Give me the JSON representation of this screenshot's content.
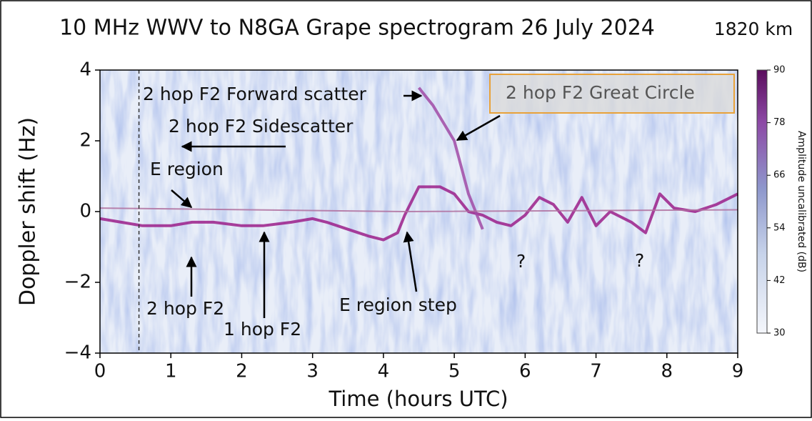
{
  "chart_data": {
    "type": "spectrogram",
    "title": "10 MHz WWV to N8GA Grape spectrogram 26 July 2024",
    "subtitle": "1820 km",
    "x_label": "Time (hours UTC)",
    "y_label": "Doppler shift (Hz)",
    "xlim": [
      0,
      9
    ],
    "xticks": [
      0,
      1,
      2,
      3,
      4,
      5,
      6,
      7,
      8,
      9
    ],
    "ylim": [
      -4,
      4
    ],
    "yticks": [
      4,
      2,
      0,
      {
        "value": -2,
        "label": "−2"
      },
      {
        "value": -4,
        "label": "−4"
      }
    ],
    "vline_x": 0.55,
    "clim": [
      30,
      90
    ],
    "cticks": [
      30,
      42,
      54,
      66,
      78,
      90
    ],
    "colorbar_label": "Amplitude uncalibrated (dB)",
    "traces": [
      {
        "color": "#9b1f8a",
        "x": [
          0,
          0.3,
          0.6,
          1,
          1.3,
          1.6,
          2,
          2.3,
          2.7,
          3,
          3.2,
          3.5,
          3.8,
          4,
          4.2,
          4.3,
          4.5,
          4.8,
          5,
          5.2,
          5.4,
          5.6,
          5.8,
          6,
          6.2,
          6.4,
          6.6,
          6.8,
          7,
          7.2,
          7.5,
          7.7,
          7.9,
          8.1,
          8.4,
          8.7,
          9
        ],
        "values": [
          -0.2,
          -0.3,
          -0.4,
          -0.4,
          -0.3,
          -0.3,
          -0.4,
          -0.4,
          -0.3,
          -0.2,
          -0.3,
          -0.5,
          -0.7,
          -0.8,
          -0.6,
          -0.1,
          0.7,
          0.7,
          0.5,
          0.0,
          -0.1,
          -0.3,
          -0.4,
          -0.1,
          0.4,
          0.2,
          -0.3,
          0.4,
          -0.4,
          0.0,
          -0.3,
          -0.6,
          0.5,
          0.1,
          0.0,
          0.2,
          0.5
        ]
      },
      {
        "color": "#a04aa6",
        "x": [
          4.5,
          4.7,
          5,
          5.2,
          5.4
        ],
        "values": [
          3.5,
          3.0,
          2.0,
          0.5,
          -0.5
        ]
      },
      {
        "color": "#b0709f",
        "x": [
          0,
          4.3,
          9
        ],
        "values": [
          0.1,
          0.0,
          0.05
        ]
      }
    ],
    "annotations": [
      "2 hop F2 Forward scatter",
      "2 hop F2 Great Circle",
      "2 hop F2 Sidescatter",
      "E region",
      "2 hop F2",
      "1 hop F2",
      "E region step",
      "?",
      "?"
    ]
  }
}
